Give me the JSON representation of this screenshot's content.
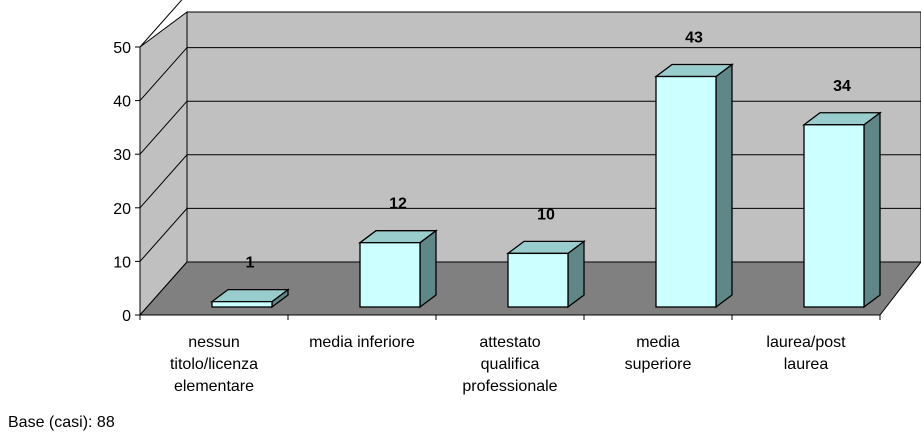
{
  "chart_data": {
    "type": "bar",
    "categories": [
      [
        "nessun",
        "titolo/licenza",
        "elementare"
      ],
      [
        "media inferiore"
      ],
      [
        "attestato",
        "qualifica",
        "professionale"
      ],
      [
        "media",
        "superiore"
      ],
      [
        "laurea/post",
        "laurea"
      ]
    ],
    "values": [
      1,
      12,
      10,
      43,
      34
    ],
    "data_labels": [
      "1",
      "12",
      "10",
      "43",
      "34"
    ],
    "y_ticks": [
      "0",
      "10",
      "20",
      "30",
      "40",
      "50"
    ],
    "ylim": [
      0,
      50
    ],
    "title": "",
    "xlabel": "",
    "ylabel": "",
    "grid": true,
    "three_d": true,
    "colors": {
      "bar_front": "#ccffff",
      "bar_top": "#99cccc",
      "bar_side": "#5f8787",
      "wall": "#c0c0c0",
      "floor": "#808080",
      "outline": "#000000"
    }
  },
  "footnote": "Base (casi): 88"
}
